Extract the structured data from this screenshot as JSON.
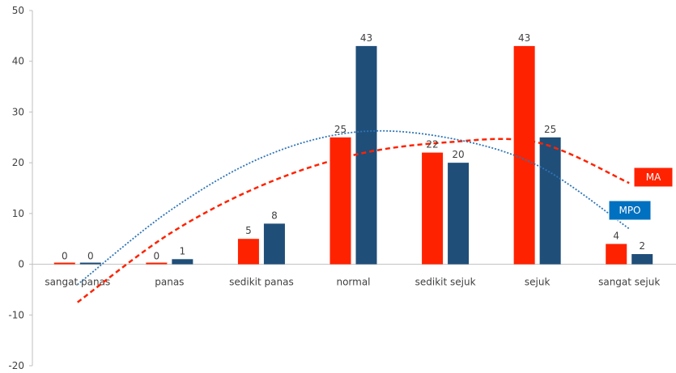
{
  "chart_data": {
    "type": "bar",
    "categories": [
      "sangat panas",
      "panas",
      "sedikit panas",
      "normal",
      "sedikit sejuk",
      "sejuk",
      "sangat sejuk"
    ],
    "series": [
      {
        "name": "MA",
        "values": [
          0,
          0,
          5,
          25,
          22,
          43,
          4
        ],
        "color": "#ff2200"
      },
      {
        "name": "MPO",
        "values": [
          0,
          1,
          8,
          43,
          20,
          25,
          2
        ],
        "color": "#1f4e79"
      }
    ],
    "trendlines": [
      {
        "series": "MA",
        "type": "polynomial",
        "style": "dashed",
        "color": "#ff2200",
        "values": [
          -7.5,
          6,
          15.5,
          21.5,
          24,
          24,
          16
        ]
      },
      {
        "series": "MPO",
        "type": "polynomial",
        "style": "dotted",
        "color": "#2e75b6",
        "values": [
          -4,
          10.5,
          21,
          26,
          25,
          19.5,
          7
        ]
      }
    ],
    "yticks": [
      -20,
      -10,
      0,
      10,
      20,
      30,
      40,
      50
    ],
    "ylim": [
      -20,
      50
    ],
    "grid": false,
    "legend": "labels-on-trendlines"
  }
}
